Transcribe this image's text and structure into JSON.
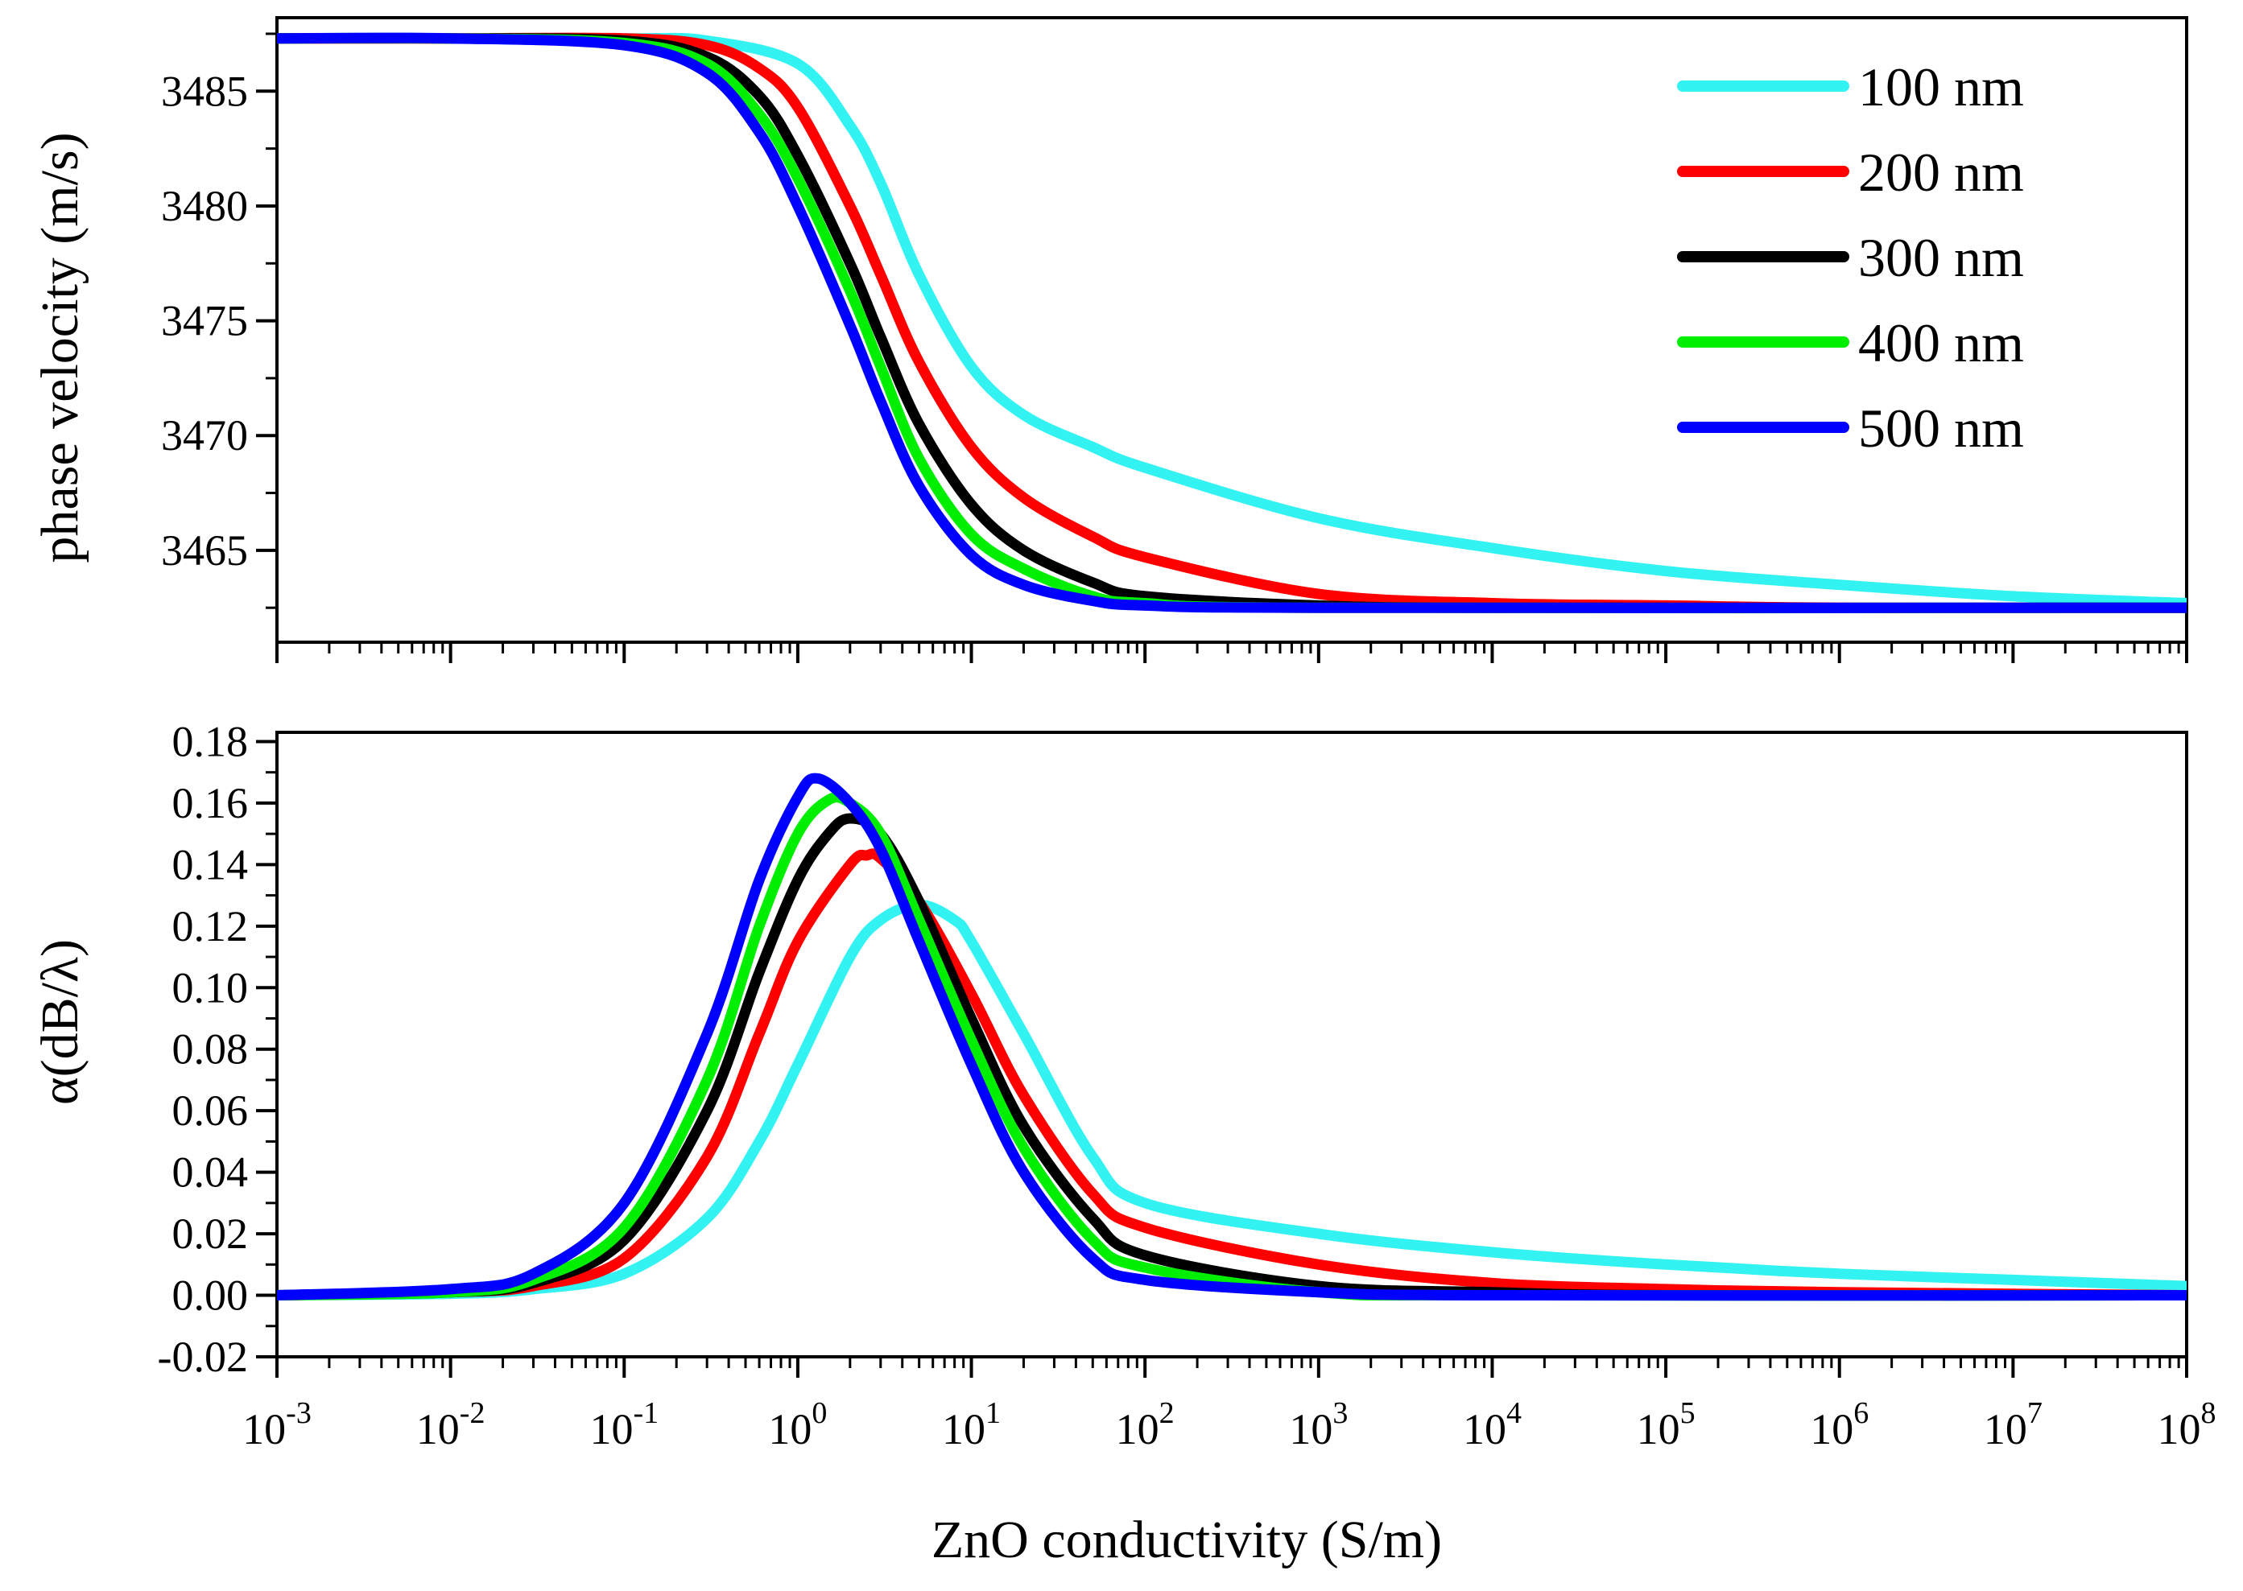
{
  "chart_data": [
    {
      "type": "line",
      "ylabel": "phase velocity (m/s)",
      "xscale": "log",
      "xlim": [
        0.001,
        100000000
      ],
      "ylim": [
        3461,
        3488.2
      ],
      "yticks": [
        "3465",
        "3470",
        "3475",
        "3480",
        "3485"
      ],
      "ytick_values": [
        3465,
        3470,
        3475,
        3480,
        3485
      ],
      "legend": {
        "placement": "top-right"
      },
      "series": [
        {
          "name": "100 nm",
          "color": "#33f2f2",
          "x": [
            0.001,
            0.01,
            0.1,
            0.3,
            1,
            2,
            3,
            5,
            10,
            20,
            50,
            100,
            1000,
            10000,
            100000,
            1000000,
            10000000,
            100000000
          ],
          "values": [
            3487.3,
            3487.3,
            3487.3,
            3487.2,
            3486.2,
            3483.5,
            3481.0,
            3477.0,
            3473.0,
            3470.9,
            3469.5,
            3468.6,
            3466.4,
            3465.1,
            3464.1,
            3463.5,
            3463.0,
            3462.7
          ]
        },
        {
          "name": "200 nm",
          "color": "#ff0000",
          "x": [
            0.001,
            0.01,
            0.1,
            0.3,
            0.6,
            1,
            2,
            3,
            5,
            10,
            20,
            50,
            100,
            1000,
            10000,
            100000,
            1000000,
            100000000
          ],
          "values": [
            3487.3,
            3487.3,
            3487.3,
            3487.0,
            3486.0,
            3484.3,
            3480.0,
            3477.0,
            3473.2,
            3469.5,
            3467.3,
            3465.6,
            3464.7,
            3463.1,
            3462.7,
            3462.6,
            3462.5,
            3462.5
          ]
        },
        {
          "name": "300 nm",
          "color": "#000000",
          "x": [
            0.001,
            0.01,
            0.1,
            0.3,
            0.6,
            1,
            2,
            3,
            5,
            10,
            20,
            50,
            100,
            1000,
            10000,
            100000000
          ],
          "values": [
            3487.3,
            3487.3,
            3487.2,
            3486.5,
            3484.8,
            3482.2,
            3477.5,
            3474.3,
            3470.5,
            3467.0,
            3465.0,
            3463.6,
            3463.0,
            3462.6,
            3462.5,
            3462.5
          ]
        },
        {
          "name": "400 nm",
          "color": "#00ee00",
          "x": [
            0.001,
            0.01,
            0.1,
            0.3,
            0.6,
            1,
            2,
            3,
            5,
            10,
            20,
            50,
            100,
            1000,
            100000000
          ],
          "values": [
            3487.3,
            3487.3,
            3487.1,
            3486.2,
            3484.0,
            3481.2,
            3476.3,
            3473.0,
            3469.0,
            3465.7,
            3464.2,
            3463.0,
            3462.7,
            3462.5,
            3462.5
          ]
        },
        {
          "name": "500 nm",
          "color": "#0000ff",
          "x": [
            0.001,
            0.01,
            0.1,
            0.3,
            0.6,
            1,
            2,
            3,
            5,
            10,
            20,
            50,
            100,
            1000,
            100000000
          ],
          "values": [
            3487.3,
            3487.3,
            3487.0,
            3485.8,
            3483.2,
            3480.0,
            3474.8,
            3471.5,
            3467.8,
            3464.8,
            3463.5,
            3462.8,
            3462.6,
            3462.5,
            3462.5
          ]
        }
      ]
    },
    {
      "type": "line",
      "xlabel": "ZnO conductivity (S/m)",
      "ylabel": "α(dB/λ)",
      "xscale": "log",
      "xlim": [
        0.001,
        100000000
      ],
      "ylim": [
        -0.02,
        0.183
      ],
      "yticks": [
        "-0.02",
        "0.00",
        "0.02",
        "0.04",
        "0.06",
        "0.08",
        "0.10",
        "0.12",
        "0.14",
        "0.16",
        "0.18"
      ],
      "ytick_values": [
        -0.02,
        0,
        0.02,
        0.04,
        0.06,
        0.08,
        0.1,
        0.12,
        0.14,
        0.16,
        0.18
      ],
      "xticks_base": [
        "10",
        "10",
        "10",
        "10",
        "10",
        "10",
        "10",
        "10",
        "10",
        "10",
        "10",
        "10"
      ],
      "xticks_exp": [
        "-3",
        "-2",
        "-1",
        "0",
        "1",
        "2",
        "3",
        "4",
        "5",
        "6",
        "7",
        "8"
      ],
      "xtick_values": [
        0.001,
        0.01,
        0.1,
        1,
        10,
        100,
        1000,
        10000,
        100000,
        1000000,
        10000000,
        100000000
      ],
      "series": [
        {
          "name": "100 nm",
          "color": "#33f2f2",
          "x": [
            0.001,
            0.01,
            0.03,
            0.1,
            0.3,
            0.6,
            1,
            2,
            3,
            5,
            8,
            10,
            20,
            50,
            100,
            1000,
            10000,
            100000,
            1000000,
            10000000,
            100000000
          ],
          "values": [
            0.0,
            0.0005,
            0.002,
            0.007,
            0.025,
            0.05,
            0.075,
            0.11,
            0.122,
            0.127,
            0.122,
            0.115,
            0.085,
            0.045,
            0.03,
            0.02,
            0.014,
            0.01,
            0.007,
            0.005,
            0.003
          ]
        },
        {
          "name": "200 nm",
          "color": "#ff0000",
          "x": [
            0.001,
            0.01,
            0.03,
            0.1,
            0.3,
            0.6,
            1,
            2,
            2.5,
            3,
            5,
            10,
            20,
            50,
            100,
            1000,
            10000,
            100000,
            1000000,
            100000000
          ],
          "values": [
            0.0,
            0.001,
            0.003,
            0.012,
            0.045,
            0.085,
            0.115,
            0.14,
            0.143,
            0.142,
            0.128,
            0.098,
            0.065,
            0.033,
            0.022,
            0.01,
            0.004,
            0.002,
            0.001,
            0.0
          ]
        },
        {
          "name": "300 nm",
          "color": "#000000",
          "x": [
            0.001,
            0.01,
            0.03,
            0.1,
            0.3,
            0.6,
            1,
            1.5,
            2,
            3,
            5,
            10,
            20,
            50,
            100,
            1000,
            10000,
            100000,
            100000000
          ],
          "values": [
            0.0,
            0.001,
            0.004,
            0.018,
            0.06,
            0.105,
            0.135,
            0.15,
            0.155,
            0.15,
            0.128,
            0.09,
            0.055,
            0.025,
            0.013,
            0.003,
            0.001,
            0.0,
            0.0
          ]
        },
        {
          "name": "400 nm",
          "color": "#00ee00",
          "x": [
            0.001,
            0.01,
            0.03,
            0.1,
            0.3,
            0.6,
            1,
            1.5,
            2,
            3,
            5,
            10,
            20,
            50,
            100,
            1000,
            10000,
            100000000
          ],
          "values": [
            0.0,
            0.001,
            0.005,
            0.022,
            0.07,
            0.12,
            0.15,
            0.161,
            0.16,
            0.15,
            0.122,
            0.083,
            0.048,
            0.018,
            0.009,
            0.001,
            0.0,
            0.0
          ]
        },
        {
          "name": "500 nm",
          "color": "#0000ff",
          "x": [
            0.001,
            0.01,
            0.03,
            0.1,
            0.3,
            0.6,
            1,
            1.3,
            2,
            3,
            5,
            10,
            20,
            50,
            100,
            1000,
            10000,
            100000000
          ],
          "values": [
            0.0,
            0.002,
            0.007,
            0.03,
            0.085,
            0.135,
            0.162,
            0.168,
            0.16,
            0.145,
            0.115,
            0.075,
            0.04,
            0.012,
            0.005,
            0.001,
            0.0,
            0.0
          ]
        }
      ]
    }
  ]
}
